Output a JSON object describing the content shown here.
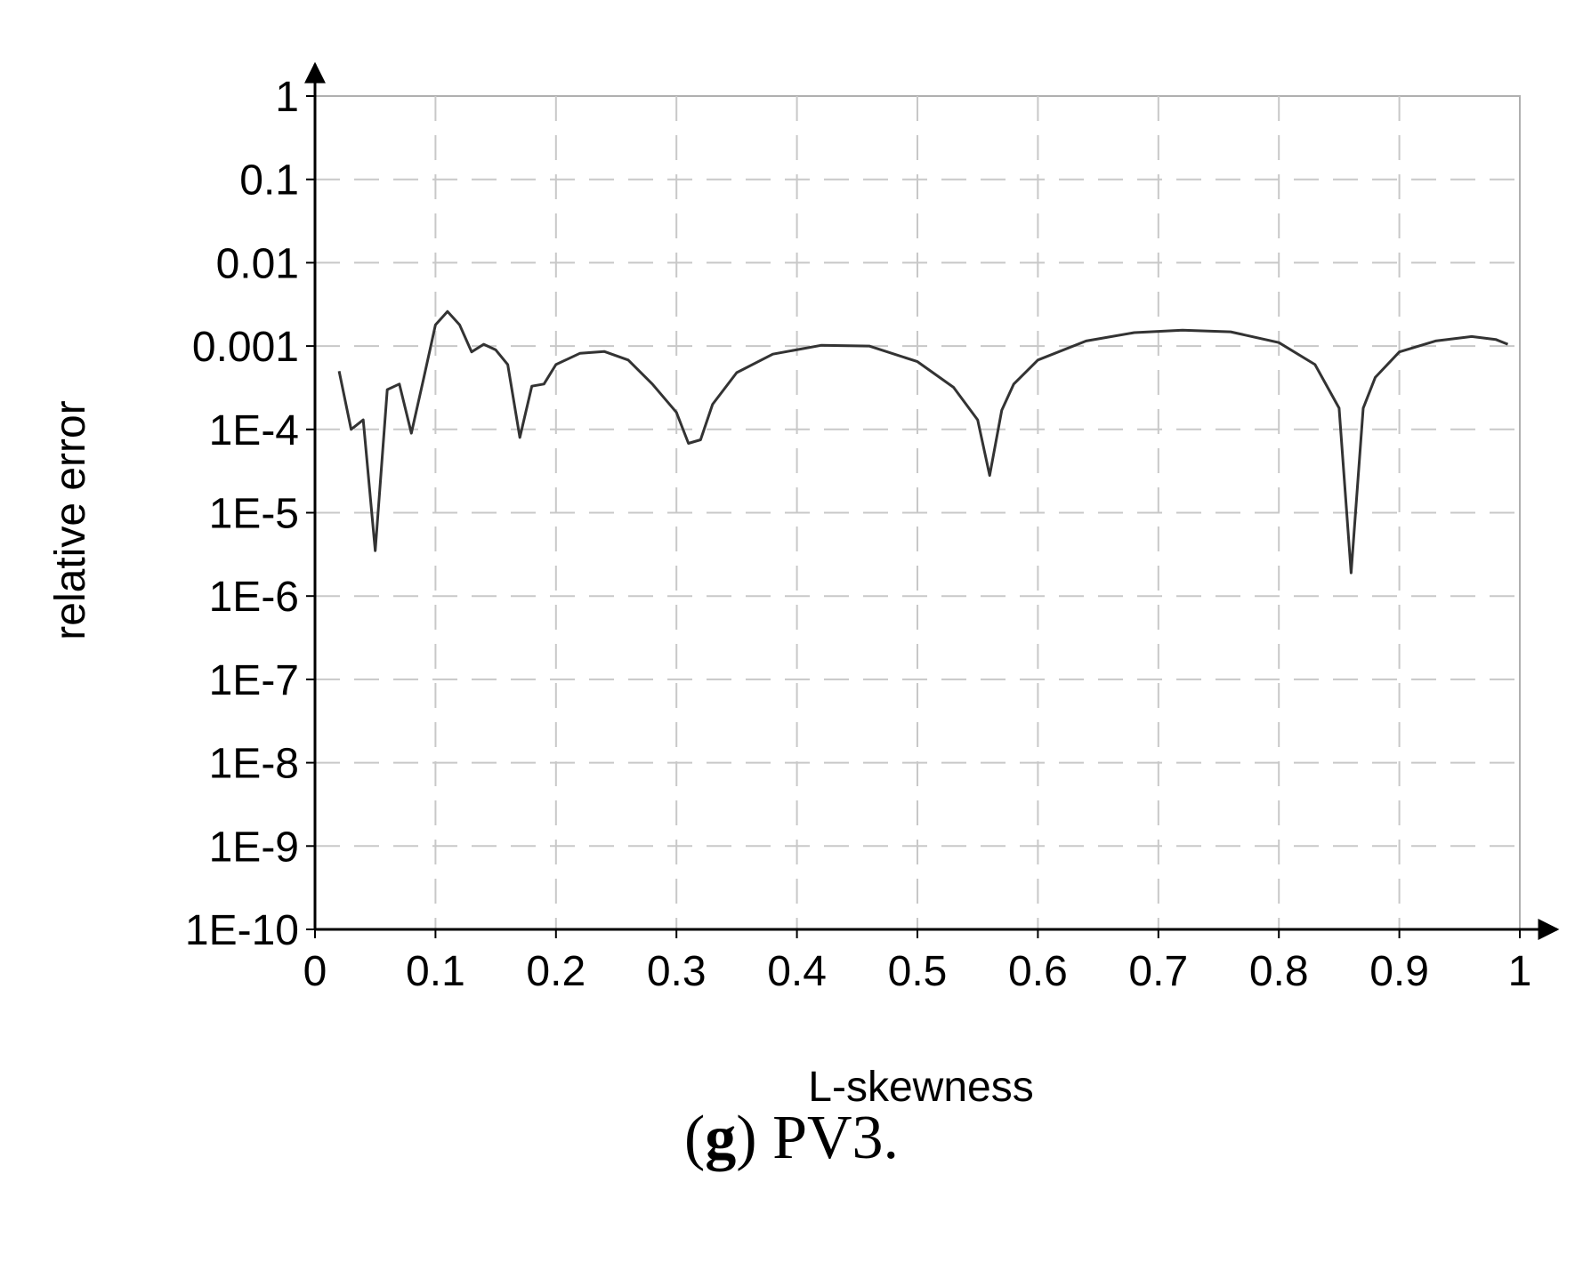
{
  "caption": {
    "letter": "g",
    "open": "(",
    "close": ")",
    "rest": " PV3."
  },
  "chart_data": {
    "type": "line",
    "title": "",
    "xlabel": "L-skewness",
    "ylabel": "relative error",
    "xlim": [
      0,
      1
    ],
    "ylim": [
      1e-10,
      1
    ],
    "yscale": "log",
    "grid": true,
    "grid_style": "dashed",
    "x_ticks": [
      "0",
      "0.1",
      "0.2",
      "0.3",
      "0.4",
      "0.5",
      "0.6",
      "0.7",
      "0.8",
      "0.9",
      "1"
    ],
    "y_ticks": [
      "1",
      "0.1",
      "0.01",
      "0.001",
      "1E-4",
      "1E-5",
      "1E-6",
      "1E-7",
      "1E-8",
      "1E-9",
      "1E-10"
    ],
    "line_color": "#333333",
    "series": [
      {
        "x": [
          0.02,
          0.03,
          0.04,
          0.05,
          0.06,
          0.07,
          0.08,
          0.09,
          0.1,
          0.11,
          0.12,
          0.13,
          0.14,
          0.15,
          0.16,
          0.17,
          0.18,
          0.19,
          0.2,
          0.22,
          0.24,
          0.26,
          0.28,
          0.3,
          0.31,
          0.32,
          0.33,
          0.35,
          0.38,
          0.42,
          0.46,
          0.5,
          0.53,
          0.55,
          0.56,
          0.57,
          0.58,
          0.6,
          0.64,
          0.68,
          0.72,
          0.76,
          0.8,
          0.83,
          0.85,
          0.86,
          0.87,
          0.88,
          0.9,
          0.93,
          0.96,
          0.98,
          0.99
        ],
        "y": [
          0.0005,
          0.0001,
          0.00013,
          3.5e-06,
          0.0003,
          0.00035,
          9e-05,
          0.0004,
          0.0018,
          0.0026,
          0.0018,
          0.00085,
          0.00105,
          0.0009,
          0.0006,
          8e-05,
          0.00033,
          0.00035,
          0.0006,
          0.00082,
          0.00086,
          0.00068,
          0.00035,
          0.00016,
          6.8e-05,
          7.5e-05,
          0.0002,
          0.00048,
          0.0008,
          0.00102,
          0.001,
          0.00065,
          0.00032,
          0.00013,
          2.8e-05,
          0.00017,
          0.00035,
          0.00068,
          0.00115,
          0.00145,
          0.00155,
          0.00148,
          0.0011,
          0.0006,
          0.00018,
          1.9e-06,
          0.00018,
          0.00042,
          0.00085,
          0.00115,
          0.0013,
          0.0012,
          0.00105
        ]
      }
    ]
  }
}
